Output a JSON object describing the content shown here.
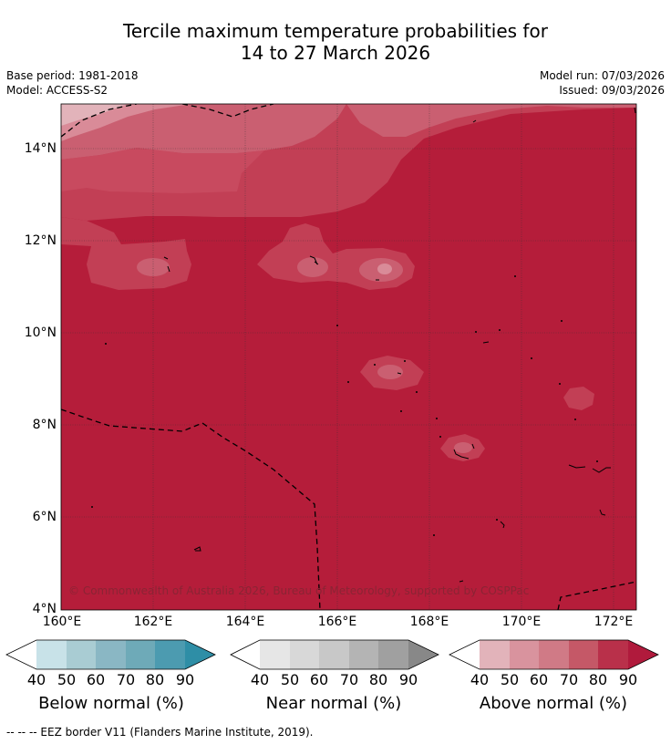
{
  "title_line1": "Tercile maximum temperature probabilities for",
  "title_line2": "14 to 27 March 2026",
  "meta": {
    "base_period": "Base period: 1981-2018",
    "model": "Model: ACCESS-S2",
    "model_run": "Model run: 07/03/2026",
    "issued": "Issued: 09/03/2026"
  },
  "map": {
    "lat_labels": [
      "14°N",
      "12°N",
      "10°N",
      "8°N",
      "6°N",
      "4°N"
    ],
    "lon_labels": [
      "160°E",
      "162°E",
      "164°E",
      "166°E",
      "168°E",
      "170°E",
      "172°E"
    ],
    "copyright": "© Commonwealth of Australia 2026, Bureau of Meteorology, supported by COSPPac",
    "colors": {
      "above_90": "#b51d3a",
      "above_80": "#c23f55",
      "above_70": "#ca5f71",
      "above_60": "#d98b98",
      "above_50": "#e2b3ba",
      "border": "#000000"
    }
  },
  "legend": {
    "ticks": [
      "40",
      "50",
      "60",
      "70",
      "80",
      "90"
    ],
    "below": {
      "title": "Below normal (%)",
      "colors": [
        "#c8e2e8",
        "#a9ccd3",
        "#8ab7c4",
        "#6eaab8",
        "#4c9bb0",
        "#2e8ea6"
      ]
    },
    "near": {
      "title": "Near normal (%)",
      "colors": [
        "#e6e6e6",
        "#d8d8d8",
        "#c8c8c8",
        "#b4b4b4",
        "#a0a0a0",
        "#888888"
      ]
    },
    "above": {
      "title": "Above normal (%)",
      "colors": [
        "#e2b3ba",
        "#d9939e",
        "#d07a86",
        "#c55867",
        "#b9304a",
        "#b01a3c"
      ]
    }
  },
  "footnote": "--  --  -- EEZ border V11 (Flanders Marine Institute, 2019)."
}
